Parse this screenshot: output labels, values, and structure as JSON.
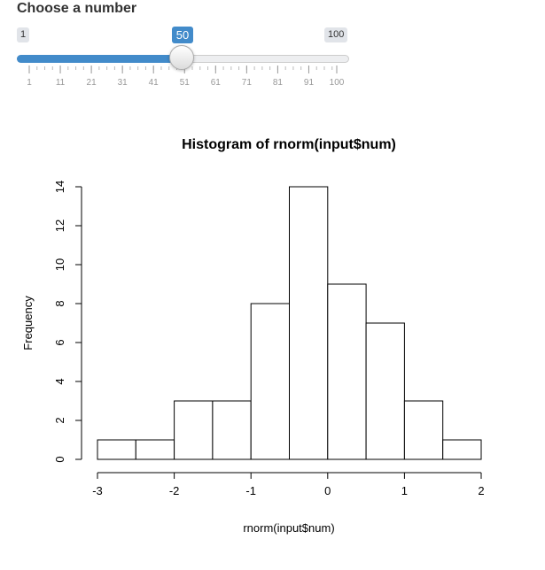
{
  "slider": {
    "label": "Choose a number",
    "min_label": "1",
    "max_label": "100",
    "value_label": "50",
    "min": 1,
    "max": 100,
    "value": 50,
    "tick_labels": [
      "1",
      "11",
      "21",
      "31",
      "41",
      "51",
      "61",
      "71",
      "81",
      "91",
      "100"
    ],
    "colors": {
      "accent": "#428bca",
      "track": "#edeef0",
      "tick_label": "#999999"
    }
  },
  "chart_data": {
    "type": "bar",
    "title": "Histogram of rnorm(input$num)",
    "xlabel": "rnorm(input$num)",
    "ylabel": "Frequency",
    "bins": [
      {
        "from": -3.0,
        "to": -2.5,
        "count": 1
      },
      {
        "from": -2.5,
        "to": -2.0,
        "count": 1
      },
      {
        "from": -2.0,
        "to": -1.5,
        "count": 3
      },
      {
        "from": -1.5,
        "to": -1.0,
        "count": 3
      },
      {
        "from": -1.0,
        "to": -0.5,
        "count": 8
      },
      {
        "from": -0.5,
        "to": 0.0,
        "count": 14
      },
      {
        "from": 0.0,
        "to": 0.5,
        "count": 9
      },
      {
        "from": 0.5,
        "to": 1.0,
        "count": 7
      },
      {
        "from": 1.0,
        "to": 1.5,
        "count": 3
      },
      {
        "from": 1.5,
        "to": 2.0,
        "count": 1
      }
    ],
    "xlim": [
      -3,
      2
    ],
    "ylim": [
      0,
      14
    ],
    "xticks": [
      -3,
      -2,
      -1,
      0,
      1,
      2
    ],
    "xtick_labels": [
      "-3",
      "-2",
      "-1",
      "0",
      "1",
      "2"
    ],
    "yticks": [
      0,
      2,
      4,
      6,
      8,
      10,
      12,
      14
    ],
    "ytick_labels": [
      "0",
      "2",
      "4",
      "6",
      "8",
      "10",
      "12",
      "14"
    ],
    "grid": false
  }
}
